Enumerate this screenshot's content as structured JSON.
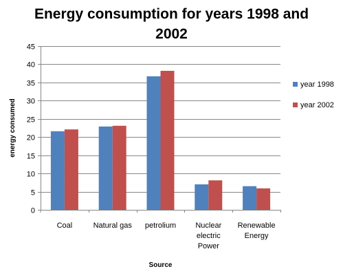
{
  "chart_data": {
    "type": "bar",
    "title_lines": [
      "Energy consumption for years 1998 and",
      "2002"
    ],
    "xlabel": "Source",
    "ylabel": "energy consumed",
    "categories": [
      [
        "Coal"
      ],
      [
        "Natural gas"
      ],
      [
        "petrolium"
      ],
      [
        "Nuclear",
        "electric",
        "Power"
      ],
      [
        "Renewable",
        "Energy"
      ]
    ],
    "series": [
      {
        "name": "year 1998",
        "color": "#4F81BD",
        "values": [
          21.6,
          22.9,
          36.7,
          7.0,
          6.5
        ]
      },
      {
        "name": "year 2002",
        "color": "#C0504D",
        "values": [
          22.1,
          23.1,
          38.2,
          8.1,
          5.9
        ]
      }
    ],
    "ylim": [
      0,
      45
    ],
    "yticks": [
      0,
      5,
      10,
      15,
      20,
      25,
      30,
      35,
      40,
      45
    ],
    "grid": true,
    "legend": "right"
  }
}
